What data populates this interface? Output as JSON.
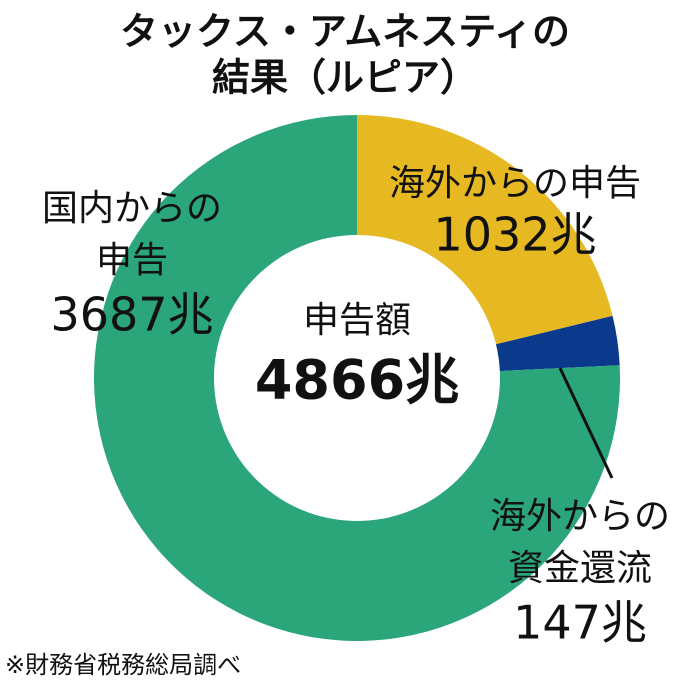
{
  "chart_data": {
    "type": "donut",
    "title": [
      "タックス・アムネスティの",
      "結果（ルピア）"
    ],
    "center_title": "申告額",
    "total": {
      "value": 4866,
      "label": "4866兆"
    },
    "categories": [
      [
        "海外からの申告"
      ],
      [
        "海外からの",
        "資金還流"
      ],
      [
        "国内からの",
        "申告"
      ]
    ],
    "values": [
      1032,
      147,
      3687
    ],
    "value_labels": [
      "1032兆",
      "147兆",
      "3687兆"
    ],
    "colors": [
      "#e6b922",
      "#0b3a8c",
      "#2ba57a"
    ],
    "source": "※財務省税務総局調べ"
  }
}
